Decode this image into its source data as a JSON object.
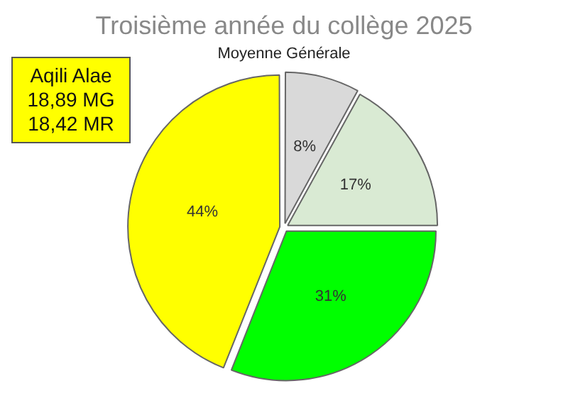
{
  "chart_data": {
    "type": "pie",
    "title": "Troisième année du collège 2025",
    "subtitle": "Moyenne Générale",
    "categories": [
      null,
      null,
      null,
      null
    ],
    "values": [
      8,
      17,
      31,
      44
    ],
    "colors": [
      "#d9d9d9",
      "#d9ead3",
      "#00ff00",
      "#ffff00"
    ],
    "value_labels": [
      "8%",
      "17%",
      "31%",
      "44%"
    ],
    "legend": false,
    "annotations": [
      "Aqili Alae",
      "18,89 MG",
      "18,42 MR"
    ]
  }
}
